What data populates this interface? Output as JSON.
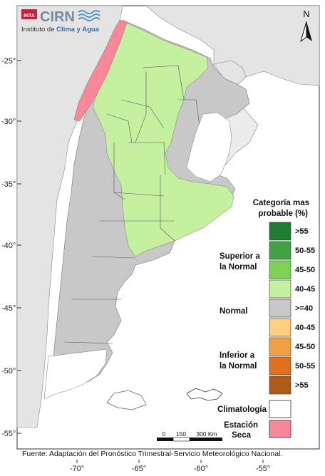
{
  "logo": {
    "badge": "INTA",
    "name": "CIRN",
    "subtitle_prefix": "Instituto de ",
    "subtitle_highlight": "Clima y Agua"
  },
  "north_label": "N",
  "lat_ticks": [
    "-25°",
    "-30°",
    "-35°",
    "-40°",
    "-45°",
    "-50°",
    "-55°"
  ],
  "lon_ticks": [
    "-70°",
    "-65°",
    "-60°",
    "-55°"
  ],
  "legend": {
    "title_line1": "Categoría mas",
    "title_line2": "probable (%)",
    "group_superior_line1": "Superior a",
    "group_superior_line2": "la Normal",
    "group_normal": "Normal",
    "group_inferior_line1": "Inferior a",
    "group_inferior_line2": "la Normal",
    "climatologia": "Climatología",
    "estacion_line1": "Estación",
    "estacion_line2": "Seca",
    "classes": [
      {
        "label": ">55",
        "color": "#1e7d32"
      },
      {
        "label": "50-55",
        "color": "#43a047"
      },
      {
        "label": "45-50",
        "color": "#7ed25a"
      },
      {
        "label": "40-45",
        "color": "#c4f0a0"
      },
      {
        "label": ">=40",
        "color": "#c8c8c8"
      },
      {
        "label": "40-45",
        "color": "#fdd080"
      },
      {
        "label": "45-50",
        "color": "#f0a040"
      },
      {
        "label": "50-55",
        "color": "#e07020"
      },
      {
        "label": ">55",
        "color": "#b05a1a"
      }
    ],
    "climatologia_color": "#ffffff",
    "estacion_color": "#f8879a"
  },
  "scale_bar": {
    "labels": [
      "0",
      "150",
      "300 Km"
    ]
  },
  "source": "Fuente: Adaptación del Pronóstico Trimestral-Servicio Meteorológico Nacional."
}
